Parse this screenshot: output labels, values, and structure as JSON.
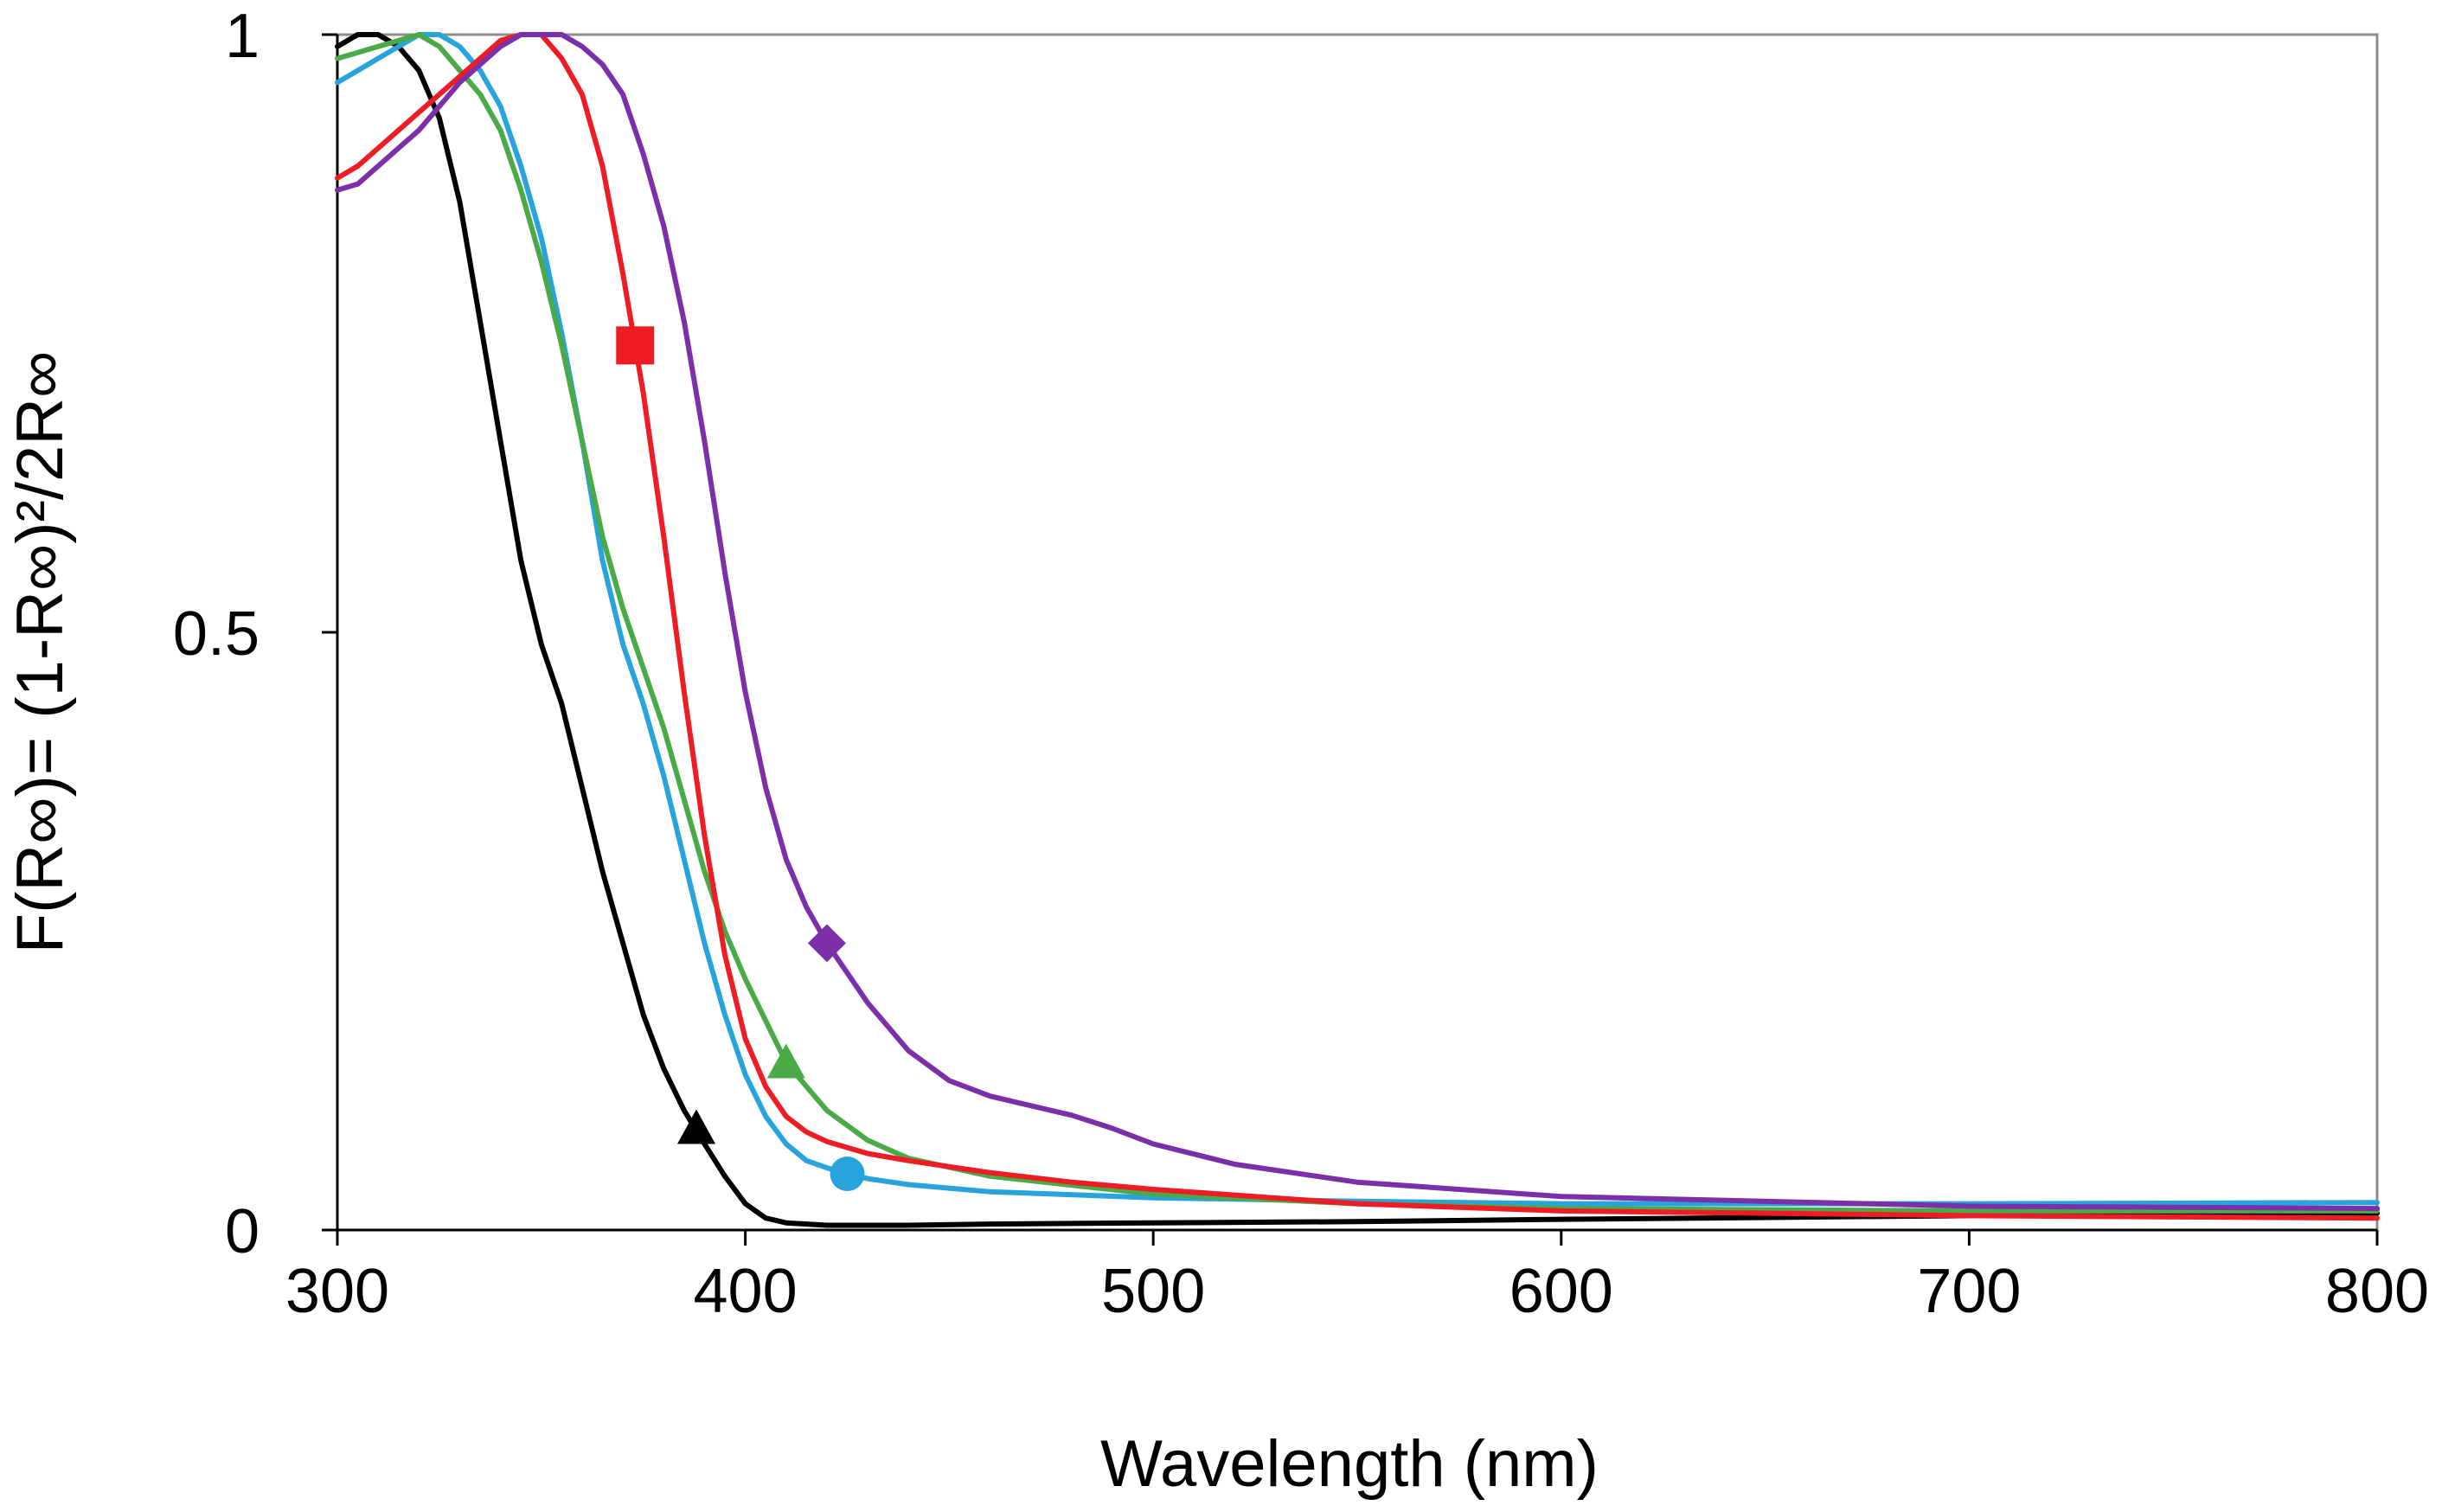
{
  "chart_data": {
    "type": "line",
    "title": "",
    "xlabel": "Wavelength  (nm)",
    "ylabel": "F(R∞)= (1-R∞)²/2R∞",
    "xlim": [
      300,
      800
    ],
    "ylim": [
      0,
      1
    ],
    "x_ticks": [
      300,
      400,
      500,
      600,
      700,
      800
    ],
    "x_tick_labels": [
      "300",
      "400",
      "500",
      "600",
      "700",
      "800"
    ],
    "y_ticks": [
      0,
      0.5,
      1
    ],
    "y_tick_labels": [
      "0",
      "0.5",
      "1"
    ],
    "grid": false,
    "legend": "none",
    "series": [
      {
        "name": "black",
        "color": "#000000",
        "marker": "triangle",
        "marker_point": [
          388,
          0.085
        ],
        "x": [
          300,
          305,
          310,
          315,
          320,
          325,
          330,
          335,
          340,
          345,
          350,
          355,
          360,
          365,
          370,
          375,
          380,
          385,
          390,
          395,
          400,
          405,
          410,
          420,
          440,
          460,
          500,
          550,
          600,
          700,
          800
        ],
        "y": [
          0.99,
          1.0,
          1.0,
          0.99,
          0.97,
          0.93,
          0.86,
          0.76,
          0.66,
          0.56,
          0.49,
          0.44,
          0.37,
          0.3,
          0.24,
          0.18,
          0.135,
          0.1,
          0.072,
          0.045,
          0.022,
          0.01,
          0.006,
          0.004,
          0.004,
          0.005,
          0.006,
          0.007,
          0.009,
          0.012,
          0.014
        ]
      },
      {
        "name": "blue",
        "color": "#29A3DC",
        "marker": "circle",
        "marker_point": [
          425,
          0.047
        ],
        "x": [
          300,
          305,
          310,
          315,
          320,
          325,
          330,
          335,
          340,
          345,
          350,
          355,
          360,
          365,
          370,
          375,
          380,
          385,
          390,
          395,
          400,
          405,
          410,
          415,
          420,
          425,
          430,
          440,
          460,
          500,
          550,
          600,
          700,
          800
        ],
        "y": [
          0.96,
          0.97,
          0.98,
          0.99,
          1.0,
          1.0,
          0.99,
          0.97,
          0.94,
          0.89,
          0.83,
          0.75,
          0.66,
          0.56,
          0.49,
          0.44,
          0.38,
          0.31,
          0.24,
          0.18,
          0.13,
          0.095,
          0.072,
          0.058,
          0.052,
          0.047,
          0.043,
          0.038,
          0.032,
          0.027,
          0.024,
          0.022,
          0.022,
          0.023
        ]
      },
      {
        "name": "green",
        "color": "#4BAA48",
        "marker": "triangle",
        "marker_point": [
          410,
          0.14
        ],
        "x": [
          300,
          305,
          310,
          315,
          320,
          325,
          330,
          335,
          340,
          345,
          350,
          355,
          360,
          365,
          370,
          375,
          380,
          385,
          390,
          395,
          400,
          405,
          410,
          415,
          420,
          430,
          440,
          460,
          500,
          550,
          600,
          700,
          800
        ],
        "y": [
          0.98,
          0.985,
          0.99,
          0.995,
          1.0,
          0.99,
          0.97,
          0.95,
          0.92,
          0.87,
          0.81,
          0.74,
          0.66,
          0.58,
          0.52,
          0.47,
          0.42,
          0.36,
          0.3,
          0.25,
          0.21,
          0.175,
          0.14,
          0.12,
          0.1,
          0.075,
          0.06,
          0.045,
          0.03,
          0.022,
          0.018,
          0.016,
          0.016
        ]
      },
      {
        "name": "red",
        "color": "#EE1C24",
        "marker": "square",
        "marker_point": [
          373,
          0.74
        ],
        "x": [
          300,
          305,
          310,
          315,
          320,
          325,
          330,
          335,
          340,
          345,
          350,
          355,
          360,
          365,
          370,
          375,
          380,
          385,
          390,
          395,
          400,
          405,
          410,
          415,
          420,
          430,
          440,
          460,
          480,
          500,
          550,
          600,
          700,
          800
        ],
        "y": [
          0.88,
          0.89,
          0.905,
          0.92,
          0.935,
          0.95,
          0.965,
          0.98,
          0.995,
          1.0,
          1.0,
          0.98,
          0.95,
          0.89,
          0.8,
          0.7,
          0.58,
          0.45,
          0.33,
          0.23,
          0.16,
          0.12,
          0.095,
          0.082,
          0.074,
          0.064,
          0.058,
          0.048,
          0.04,
          0.034,
          0.022,
          0.016,
          0.012,
          0.01
        ]
      },
      {
        "name": "purple",
        "color": "#7B2FA8",
        "marker": "diamond",
        "marker_point": [
          420,
          0.24
        ],
        "x": [
          300,
          305,
          310,
          315,
          320,
          325,
          330,
          335,
          340,
          345,
          350,
          355,
          360,
          365,
          370,
          375,
          380,
          385,
          390,
          395,
          400,
          405,
          410,
          415,
          420,
          430,
          440,
          450,
          460,
          470,
          480,
          490,
          500,
          520,
          550,
          600,
          700,
          800
        ],
        "y": [
          0.87,
          0.875,
          0.89,
          0.905,
          0.92,
          0.94,
          0.96,
          0.975,
          0.99,
          1.0,
          1.0,
          1.0,
          0.99,
          0.975,
          0.95,
          0.9,
          0.84,
          0.76,
          0.66,
          0.55,
          0.45,
          0.37,
          0.31,
          0.27,
          0.24,
          0.19,
          0.15,
          0.125,
          0.112,
          0.104,
          0.096,
          0.085,
          0.072,
          0.055,
          0.04,
          0.028,
          0.02,
          0.018
        ]
      }
    ]
  }
}
